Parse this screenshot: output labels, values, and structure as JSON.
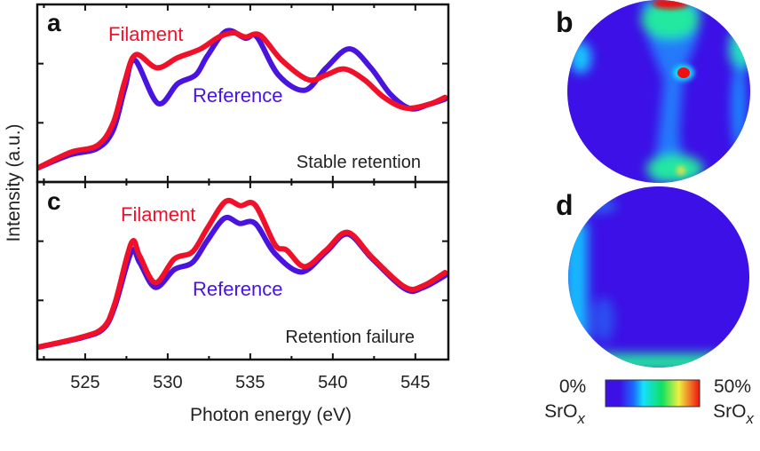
{
  "chart_data": [
    {
      "type": "line",
      "panel_label": "a",
      "annotation": "Stable retention",
      "xlim": [
        522.1,
        547
      ],
      "x_ticks": [
        525,
        530,
        535,
        540,
        545
      ],
      "ylim": [
        0,
        3
      ],
      "grid": false,
      "series": [
        {
          "name": "Filament",
          "color": "#f0102a",
          "x": [
            522.15,
            524.1,
            525.75,
            526.7,
            527.4,
            528.06,
            529.35,
            530.6,
            532.0,
            533.1,
            534.0,
            534.7,
            535.6,
            536.9,
            538.5,
            539.6,
            540.7,
            541.9,
            543.1,
            544.4,
            545.8,
            546.8
          ],
          "y": [
            0.24,
            0.5,
            0.62,
            1.0,
            1.7,
            2.15,
            1.93,
            2.1,
            2.25,
            2.45,
            2.52,
            2.45,
            2.48,
            2.06,
            1.73,
            1.81,
            1.91,
            1.73,
            1.43,
            1.25,
            1.31,
            1.43
          ]
        },
        {
          "name": "Reference",
          "color": "#4a14e0",
          "x": [
            522.15,
            524.1,
            525.75,
            526.7,
            527.4,
            528.0,
            529.4,
            530.6,
            531.7,
            532.4,
            533.55,
            534.7,
            535.4,
            536.7,
            538.3,
            539.6,
            541.0,
            542.3,
            543.5,
            544.7,
            545.8,
            546.8
          ],
          "y": [
            0.24,
            0.46,
            0.57,
            0.88,
            1.58,
            2.06,
            1.33,
            1.66,
            1.81,
            2.13,
            2.55,
            2.43,
            2.45,
            1.81,
            1.55,
            1.93,
            2.25,
            1.93,
            1.48,
            1.24,
            1.31,
            1.4
          ]
        }
      ]
    },
    {
      "type": "line",
      "panel_label": "c",
      "annotation": "Retention failure",
      "xlim": [
        522.1,
        547
      ],
      "x_ticks": [
        525,
        530,
        535,
        540,
        545
      ],
      "ylim": [
        0,
        3
      ],
      "grid": false,
      "series": [
        {
          "name": "Filament",
          "color": "#f0102a",
          "x": [
            522.15,
            524.8,
            526.1,
            526.8,
            527.8,
            528.3,
            529.25,
            530.4,
            531.5,
            532.4,
            533.5,
            534.4,
            535.3,
            536.5,
            537.2,
            538.3,
            539.6,
            540.9,
            542.4,
            544.4,
            545.5,
            546.8
          ],
          "y": [
            0.21,
            0.38,
            0.54,
            0.95,
            1.97,
            1.75,
            1.3,
            1.7,
            1.82,
            2.22,
            2.67,
            2.6,
            2.61,
            1.94,
            1.85,
            1.57,
            1.85,
            2.15,
            1.72,
            1.22,
            1.25,
            1.47
          ]
        },
        {
          "name": "Reference",
          "color": "#4a14e0",
          "x": [
            522.15,
            524.8,
            526.1,
            526.8,
            527.8,
            528.3,
            529.25,
            530.4,
            531.5,
            532.4,
            533.45,
            534.35,
            535.3,
            536.5,
            538.1,
            539.6,
            540.9,
            542.4,
            544.4,
            545.5,
            546.8
          ],
          "y": [
            0.21,
            0.37,
            0.52,
            0.9,
            1.82,
            1.64,
            1.22,
            1.52,
            1.64,
            2.01,
            2.39,
            2.3,
            2.3,
            1.79,
            1.48,
            1.82,
            2.12,
            1.7,
            1.19,
            1.22,
            1.42
          ]
        }
      ]
    }
  ],
  "axes": {
    "ylabel": "Intensity (a.u.)",
    "xlabel": "Photon energy (eV)",
    "x_tick_labels": [
      "525",
      "530",
      "535",
      "540",
      "545"
    ]
  },
  "maps": {
    "panel_b_label": "b",
    "panel_d_label": "d",
    "colorbar": {
      "min_label": "0%",
      "max_label": "50%",
      "quantity": "SrO",
      "subscript": "x",
      "colors": [
        "#3c10e6",
        "#1a3cff",
        "#14d8ff",
        "#10e060",
        "#f0f040",
        "#f01010"
      ]
    }
  }
}
